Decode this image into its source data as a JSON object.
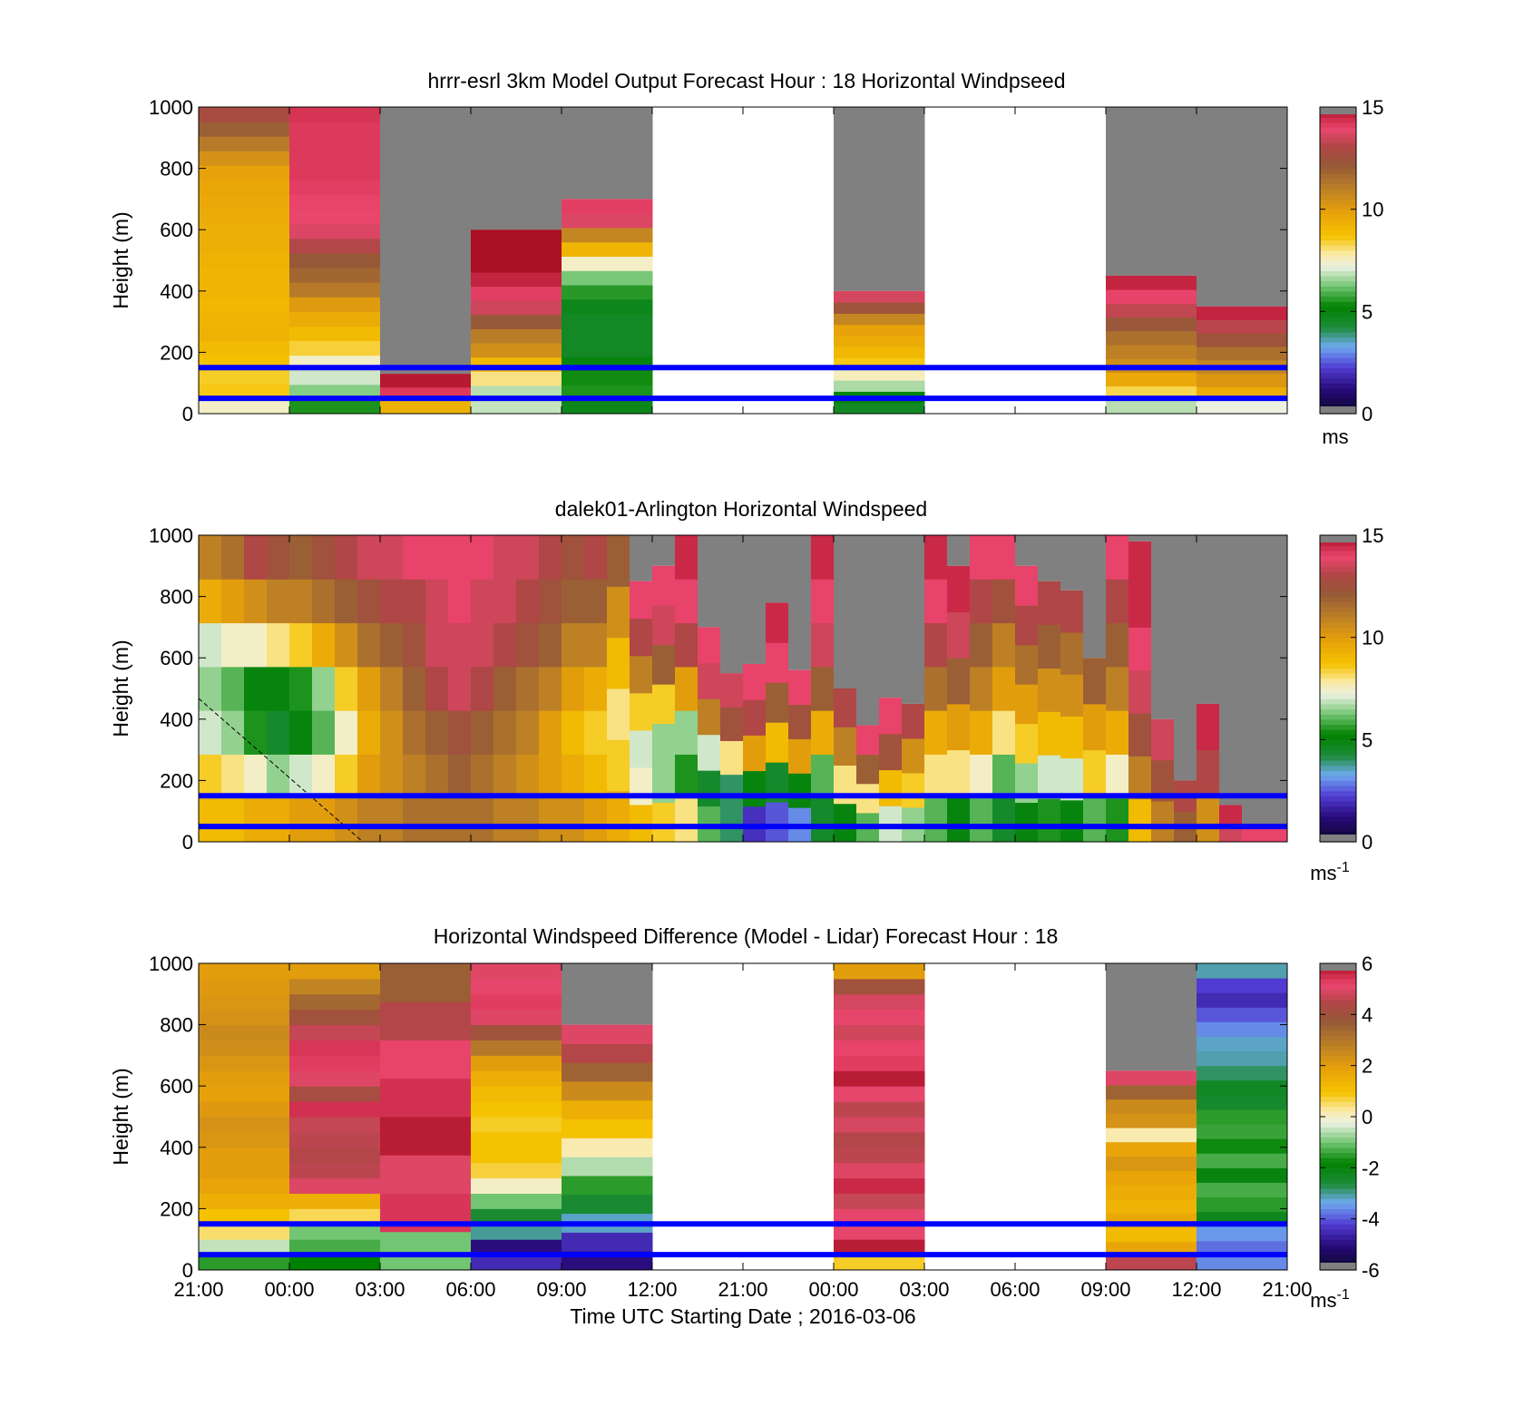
{
  "xaxis": {
    "ticks": [
      "21:00",
      "00:00",
      "03:00",
      "06:00",
      "09:00",
      "12:00",
      "21:00",
      "00:00",
      "03:00",
      "06:00",
      "09:00",
      "12:00",
      "21:00"
    ],
    "label": "Time UTC  Starting Date ; 2016-03-06"
  },
  "chart_data": [
    {
      "type": "heatmap",
      "title": "hrrr-esrl 3km Model Output   Forecast Hour : 18 Horizontal Windpseed",
      "ylabel": "Height (m)",
      "ylim": [
        0,
        1000
      ],
      "yticks": [
        "0",
        "200",
        "400",
        "600",
        "800",
        "1000"
      ],
      "reference_lines_m": [
        150,
        50
      ],
      "colorbar": {
        "min": 0,
        "max": 15,
        "ticks": [
          "0",
          "5",
          "10",
          "15"
        ],
        "unit": "ms"
      },
      "columns": [
        {
          "col": 0,
          "top": 1000,
          "values": [
            7.5,
            8.6,
            8.5,
            8.8,
            9,
            9.3,
            9.2,
            9.1,
            9.2,
            9.2,
            9.3,
            9.4,
            9.4,
            9.5,
            9.6,
            9.7,
            9.8,
            10.4,
            11.2,
            12,
            12.8
          ]
        },
        {
          "col": 1,
          "top": 1000,
          "values": [
            5.5,
            6.4,
            7,
            7.5,
            8.4,
            9,
            9.5,
            10.1,
            11.2,
            11.8,
            12.2,
            13.1,
            13.7,
            13.9,
            14,
            14.1,
            14.2,
            14.2,
            14.2,
            14.2,
            14.3
          ]
        },
        {
          "col": 2,
          "top": 130,
          "values": [
            9.3,
            14.2,
            14.8
          ]
        },
        {
          "col": 3,
          "top": 600,
          "values": [
            6.9,
            6.8,
            8,
            9.1,
            10.5,
            11.1,
            12.2,
            13.5,
            14.1,
            14.6,
            15,
            15.4,
            15.5
          ]
        },
        {
          "col": 4,
          "top": 700,
          "values": [
            4.8,
            5.5,
            5.4,
            5,
            4.6,
            4.6,
            4.6,
            4.8,
            5.6,
            6.3,
            7.5,
            9.2,
            10.8,
            13.7,
            14.1
          ]
        },
        {
          "col": 7,
          "top": 400,
          "values": [
            4.6,
            5.3,
            6.7,
            7.6,
            8.6,
            9.1,
            9.5,
            9.8,
            10.8,
            12.4,
            13.6
          ]
        },
        {
          "col": 10,
          "top": 450,
          "values": [
            6.8,
            8.3,
            9.6,
            10.5,
            11,
            11.5,
            12.3,
            13.3,
            14,
            14.6
          ]
        },
        {
          "col": 11,
          "top": 350,
          "values": [
            7.2,
            9.5,
            10.2,
            10.8,
            11.5,
            12.4,
            13.2,
            14.6
          ]
        }
      ]
    },
    {
      "type": "heatmap",
      "title": "dalek01-Arlington  Horizontal Windspeed",
      "ylabel": "Height (m)",
      "ylim": [
        0,
        1000
      ],
      "yticks": [
        "0",
        "200",
        "400",
        "600",
        "800",
        "1000"
      ],
      "reference_lines_m": [
        150,
        50
      ],
      "colorbar": {
        "min": 0,
        "max": 15,
        "ticks": [
          "0",
          "5",
          "10",
          "15"
        ],
        "unit": "ms",
        "unit_exp": "-1"
      },
      "columns": [
        {
          "top": 1000,
          "values": [
            9,
            8.5,
            7,
            6.5,
            7,
            9.5,
            11
          ]
        },
        {
          "top": 1000,
          "values": [
            9,
            8,
            6.5,
            6,
            7.5,
            10,
            11.5
          ]
        },
        {
          "top": 1000,
          "values": [
            9.5,
            7.5,
            5.5,
            5,
            7.5,
            10.5,
            13
          ]
        },
        {
          "top": 1000,
          "values": [
            9.5,
            6.5,
            4.5,
            5,
            8,
            11,
            12.5
          ]
        },
        {
          "top": 1000,
          "values": [
            10,
            7,
            5,
            5.5,
            8.5,
            11,
            12
          ]
        },
        {
          "top": 1000,
          "values": [
            10,
            7.5,
            6,
            6.5,
            9.5,
            11.5,
            12.5
          ]
        },
        {
          "top": 1000,
          "values": [
            10.5,
            8.5,
            7.5,
            8.5,
            10.5,
            12,
            13
          ]
        },
        {
          "top": 1000,
          "values": [
            11,
            10,
            9.5,
            10,
            11.5,
            12.5,
            13.5
          ]
        },
        {
          "top": 1000,
          "values": [
            11,
            10.5,
            10.5,
            11,
            12,
            13,
            13.5
          ]
        },
        {
          "top": 1000,
          "values": [
            11.5,
            11,
            11.5,
            12,
            12.5,
            13,
            14
          ]
        },
        {
          "top": 1000,
          "values": [
            11.5,
            11.5,
            12,
            13,
            13.5,
            13.5,
            14
          ]
        },
        {
          "top": 1000,
          "values": [
            11.5,
            12,
            12.5,
            13.5,
            13.5,
            14,
            14
          ]
        },
        {
          "top": 1000,
          "values": [
            11.5,
            11.5,
            12,
            13,
            13.5,
            13.5,
            14
          ]
        },
        {
          "top": 1000,
          "values": [
            11,
            11,
            11.5,
            12,
            13,
            13.5,
            13.5
          ]
        },
        {
          "top": 1000,
          "values": [
            11,
            10.5,
            11,
            11.5,
            12.5,
            13,
            13.5
          ]
        },
        {
          "top": 1000,
          "values": [
            10.5,
            10,
            10,
            11,
            12,
            12.5,
            13
          ]
        },
        {
          "top": 1000,
          "values": [
            10.5,
            9.5,
            9,
            10,
            11,
            12,
            12.5
          ]
        },
        {
          "top": 1000,
          "values": [
            10,
            9,
            8.5,
            9.5,
            11,
            12,
            13
          ]
        },
        {
          "top": 1000,
          "values": [
            9.5,
            8.5,
            8,
            9,
            10.5,
            12
          ]
        },
        {
          "top": 850,
          "values": [
            9,
            7.5,
            7,
            8.5,
            11,
            13,
            14
          ]
        },
        {
          "top": 900,
          "values": [
            8.5,
            6.5,
            6.5,
            8.5,
            12,
            13.5,
            14
          ]
        },
        {
          "top": 1000,
          "values": [
            8,
            5.5,
            6.5,
            10,
            13,
            14,
            14.5
          ]
        },
        {
          "top": 700,
          "values": [
            6,
            4.5,
            7,
            11,
            13.5,
            14
          ]
        },
        {
          "top": 550,
          "values": [
            4,
            4,
            8,
            12.5,
            13.5
          ]
        },
        {
          "top": 580,
          "values": [
            2,
            5,
            10,
            13,
            14
          ]
        },
        {
          "top": 780,
          "values": [
            2.5,
            4.5,
            9,
            12,
            14,
            14.5
          ]
        },
        {
          "top": 560,
          "values": [
            3,
            5,
            10,
            12.5,
            14
          ]
        },
        {
          "top": 1000,
          "values": [
            4.5,
            6,
            9.5,
            12,
            13.5,
            14,
            14.5
          ]
        },
        {
          "top": 500,
          "values": [
            5,
            8,
            11,
            13
          ]
        },
        {
          "top": 380,
          "values": [
            6,
            8,
            12,
            14
          ]
        },
        {
          "top": 470,
          "values": [
            7,
            9,
            12.5,
            14
          ]
        },
        {
          "top": 450,
          "values": [
            6.5,
            8.5,
            10.5,
            13
          ]
        },
        {
          "top": 1000,
          "values": [
            6,
            8,
            9.5,
            11.5,
            13,
            14,
            14.5
          ]
        },
        {
          "top": 900,
          "values": [
            5,
            8,
            10,
            12,
            13.5,
            14.5
          ]
        },
        {
          "top": 1000,
          "values": [
            6,
            7.5,
            9.5,
            11,
            12,
            13,
            14
          ]
        },
        {
          "top": 1000,
          "values": [
            4.5,
            6,
            8,
            10,
            11,
            12.5,
            14
          ]
        },
        {
          "top": 900,
          "values": [
            5,
            6.5,
            8.5,
            10,
            11.5,
            13,
            14
          ]
        },
        {
          "top": 850,
          "values": [
            5.5,
            7,
            9,
            10.5,
            12,
            13
          ]
        },
        {
          "top": 820,
          "values": [
            5,
            7,
            9,
            10.5,
            11.5,
            13
          ]
        },
        {
          "top": 600,
          "values": [
            6,
            8.5,
            10,
            12
          ]
        },
        {
          "top": 1000,
          "values": [
            5.5,
            7.5,
            9.5,
            11,
            12,
            13,
            14
          ]
        },
        {
          "top": 980,
          "values": [
            9,
            11,
            12.5,
            13.5,
            14,
            14.5,
            14.5
          ]
        },
        {
          "top": 400,
          "values": [
            11,
            12.5,
            13.5
          ]
        },
        {
          "top": 200,
          "values": [
            12,
            13
          ]
        },
        {
          "top": 450,
          "values": [
            10.5,
            13,
            14.5
          ]
        },
        {
          "top": 120,
          "values": [
            13.5,
            14.5
          ]
        },
        {
          "top": 50,
          "values": [
            14
          ]
        },
        {
          "top": 50,
          "values": [
            14
          ]
        }
      ]
    },
    {
      "type": "heatmap",
      "title": "Horizontal Windspeed Difference (Model - Lidar) Forecast Hour : 18",
      "ylabel": "Height (m)",
      "ylim": [
        0,
        1000
      ],
      "yticks": [
        "0",
        "200",
        "400",
        "600",
        "800",
        "1000"
      ],
      "reference_lines_m": [
        150,
        50
      ],
      "colorbar": {
        "min": -6,
        "max": 6,
        "ticks": [
          "-6",
          "-4",
          "-2",
          "0",
          "2",
          "4",
          "6"
        ],
        "unit": "ms",
        "unit_exp": "-1"
      },
      "columns": [
        {
          "col": 0,
          "top": 1000,
          "values": [
            -1.5,
            -0.5,
            0.5,
            1,
            1.5,
            1.8,
            2,
            2,
            2.2,
            2.3,
            2.1,
            1.9,
            2,
            2.2,
            2.4,
            2.5,
            2.3,
            2.2,
            2.1,
            2
          ]
        },
        {
          "col": 1,
          "top": 1000,
          "values": [
            -1.8,
            -1.3,
            -1,
            0.6,
            1.5,
            5,
            4.6,
            4.5,
            4.6,
            4.7,
            5.5,
            4.2,
            5,
            5.3,
            5.4,
            4.7,
            4,
            3.4,
            2.7,
            2
          ]
        },
        {
          "col": 2,
          "top": 1000,
          "values": [
            -1,
            5.4,
            5,
            5.8,
            5.5,
            5.2,
            4.5,
            3.6
          ]
        },
        {
          "col": 3,
          "top": 1000,
          "values": [
            -4.5,
            -5,
            -3,
            -2.5,
            -1,
            0,
            0.7,
            1,
            1,
            0.8,
            1,
            1.2,
            1.5,
            2,
            3,
            4,
            5,
            5.3,
            5.1,
            5
          ]
        },
        {
          "col": 4,
          "top": 800,
          "values": [
            -5,
            -4.5,
            -3.2,
            -2.5,
            -1.5,
            -0.6,
            0.2,
            1,
            1.5,
            2.5,
            3.5,
            4.5,
            5
          ]
        },
        {
          "col": 7,
          "top": 1000,
          "values": [
            0.8,
            5.8,
            5.1,
            5.1,
            4.7,
            5.6,
            5,
            4.6,
            4.5,
            4.9,
            4.6,
            5.1,
            5.8,
            5.3,
            5.2,
            4.8,
            5.1,
            4.9,
            4,
            2
          ]
        },
        {
          "col": 10,
          "top": 650,
          "values": [
            4.6,
            1.8,
            1.2,
            1.7,
            1.4,
            1.6,
            1.8,
            2.2,
            1.8,
            0.2,
            2.3,
            2.5,
            3.5,
            5
          ]
        },
        {
          "col": 11,
          "top": 1000,
          "values": [
            -3.6,
            -3.8,
            -3.5,
            -2.2,
            -1.5,
            -1.3,
            -2,
            -1.3,
            -1.7,
            -1.4,
            -1.5,
            -2.4,
            -2.3,
            -2.8,
            -3.1,
            -3.2,
            -3.6,
            -4,
            -4.5,
            -4.2,
            -3.1
          ]
        }
      ]
    }
  ]
}
